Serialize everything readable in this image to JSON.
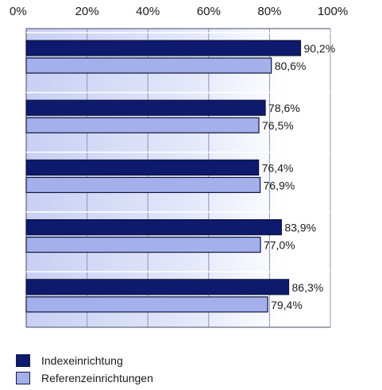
{
  "chart_data": {
    "type": "bar",
    "orientation": "horizontal",
    "xlim": [
      0,
      100
    ],
    "ticks": [
      "0%",
      "20%",
      "40%",
      "60%",
      "80%",
      "100%"
    ],
    "tick_values": [
      0,
      20,
      40,
      60,
      80,
      100
    ],
    "categories": [
      "",
      "",
      "",
      "",
      ""
    ],
    "series": [
      {
        "name": "Indexeinrichtung",
        "color": "#0d1a6e",
        "values": [
          90.2,
          78.6,
          76.4,
          83.9,
          86.3
        ],
        "labels": [
          "90,2%",
          "78,6%",
          "76,4%",
          "83,9%",
          "86,3%"
        ]
      },
      {
        "name": "Referenzeinrichtungen",
        "color": "#a4b0ec",
        "values": [
          80.6,
          76.5,
          76.9,
          77.0,
          79.4
        ],
        "labels": [
          "80,6%",
          "76,5%",
          "76,9%",
          "77,0%",
          "79,4%"
        ]
      }
    ],
    "legend_position": "bottom-left",
    "grid": true
  }
}
